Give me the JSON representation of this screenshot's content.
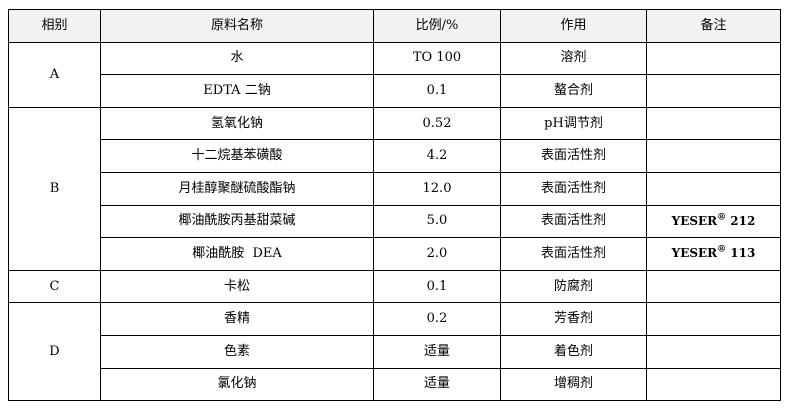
{
  "headers": {
    "group": "相别",
    "name": "原料名称",
    "ratio": "比例/%",
    "function": "作用",
    "note": "备注"
  },
  "groups": [
    {
      "label": "A",
      "rows": [
        {
          "name": "水",
          "ratio": "TO 100",
          "function": "溶剂",
          "note": ""
        },
        {
          "name": "EDTA 二钠",
          "ratio": "0.1",
          "function": "螯合剂",
          "note": ""
        }
      ]
    },
    {
      "label": "B",
      "rows": [
        {
          "name": "氢氧化钠",
          "ratio": "0.52",
          "function": "pH调节剂",
          "note": ""
        },
        {
          "name": "十二烷基苯磺酸",
          "ratio": "4.2",
          "function": "表面活性剂",
          "note": ""
        },
        {
          "name": "月桂醇聚醚硫酸酯钠",
          "ratio": "12.0",
          "function": "表面活性剂",
          "note": ""
        },
        {
          "name": "椰油酰胺丙基甜菜碱",
          "ratio": "5.0",
          "function": "表面活性剂",
          "note": "YESER",
          "note_sup": "®",
          "note_num": " 212"
        },
        {
          "name": "椰油酰胺  DEA",
          "ratio": "2.0",
          "function": "表面活性剂",
          "note": "YESER",
          "note_sup": "®",
          "note_num": " 113"
        }
      ]
    },
    {
      "label": "C",
      "rows": [
        {
          "name": "卡松",
          "ratio": "0.1",
          "function": "防腐剂",
          "note": ""
        }
      ]
    },
    {
      "label": "D",
      "rows": [
        {
          "name": "香精",
          "ratio": "0.2",
          "function": "芳香剂",
          "note": ""
        },
        {
          "name": "色素",
          "ratio": "适量",
          "function": "着色剂",
          "note": ""
        },
        {
          "name": "氯化钠",
          "ratio": "适量",
          "function": "增稠剂",
          "note": ""
        }
      ]
    }
  ]
}
